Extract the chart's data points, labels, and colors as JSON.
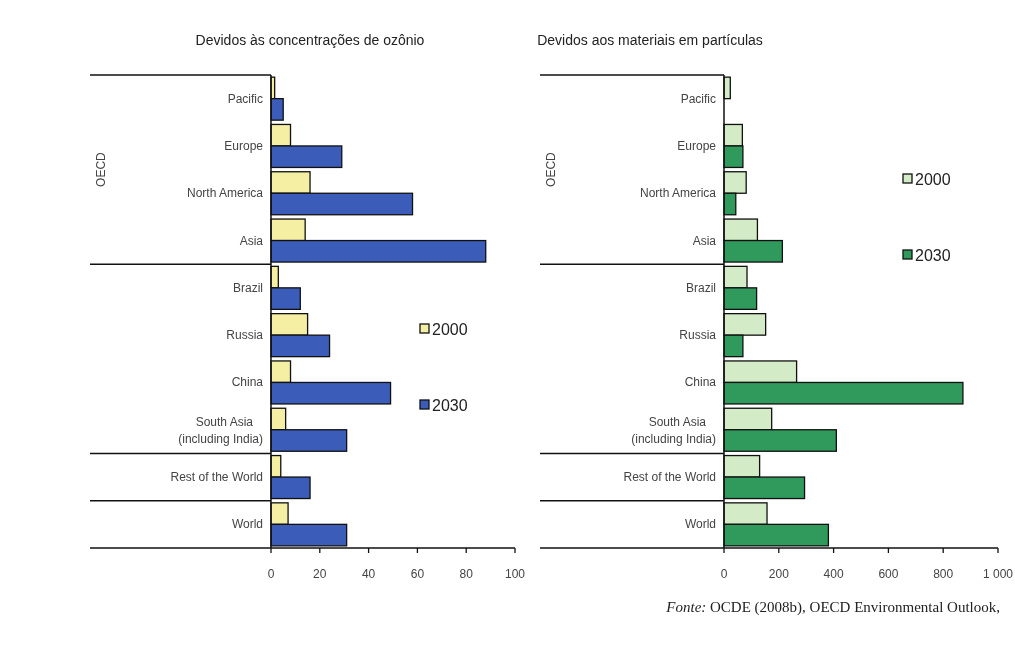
{
  "chart_data": [
    {
      "type": "bar",
      "orientation": "horizontal",
      "title": "Devidos às concentrações de ozônio",
      "categories": [
        "Pacific",
        "Europe",
        "North America",
        "Asia",
        "Brazil",
        "Russia",
        "China",
        "South Asia\n(including India)",
        "Rest of the World",
        "World"
      ],
      "series": [
        {
          "name": "2000",
          "color": "#f4efa2",
          "values": [
            1.5,
            8,
            16,
            14,
            3,
            15,
            8,
            6,
            4,
            7
          ]
        },
        {
          "name": "2030",
          "color": "#3b5cb8",
          "values": [
            5,
            29,
            58,
            88,
            12,
            24,
            49,
            31,
            16,
            31
          ]
        }
      ],
      "xlim": [
        0,
        100
      ],
      "xticks": [
        0,
        20,
        40,
        60,
        80,
        100
      ],
      "legend": "right",
      "grid": false,
      "annotations": [
        "OECD"
      ]
    },
    {
      "type": "bar",
      "orientation": "horizontal",
      "title": "Devidos aos materiais em partículas",
      "categories": [
        "Pacific",
        "Europe",
        "North America",
        "Asia",
        "Brazil",
        "Russia",
        "China",
        "South Asia\n(including India)",
        "Rest of the World",
        "World"
      ],
      "series": [
        {
          "name": "2000",
          "color": "#d3ebc6",
          "values": [
            23,
            67,
            81,
            122,
            84,
            152,
            265,
            174,
            130,
            157
          ]
        },
        {
          "name": "2030",
          "color": "#2f9a5c",
          "values": [
            null,
            69,
            43,
            213,
            119,
            69,
            872,
            410,
            294,
            381
          ]
        }
      ],
      "xlim": [
        0,
        1000
      ],
      "xticks": [
        0,
        200,
        400,
        600,
        800,
        {
          "value": 1000,
          "label": "1 000"
        }
      ],
      "legend": "top right",
      "grid": false,
      "annotations": [
        "OECD",
        "Fonte: OCDE (2008b), OECD Environmental Outlook,"
      ]
    }
  ]
}
